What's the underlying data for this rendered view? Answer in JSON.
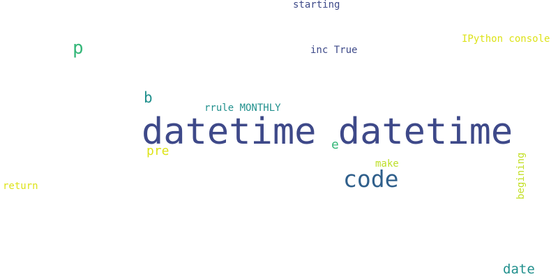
{
  "words": [
    {
      "id": "datetime-datetime",
      "text": "datetime datetime",
      "color": "#3e4989"
    },
    {
      "id": "code",
      "text": "code",
      "color": "#2f5f8b"
    },
    {
      "id": "p",
      "text": "p",
      "color": "#35b779"
    },
    {
      "id": "b",
      "text": "b",
      "color": "#21908d"
    },
    {
      "id": "rrule-monthly",
      "text": "rrule MONTHLY",
      "color": "#21908d"
    },
    {
      "id": "inc-true",
      "text": "inc True",
      "color": "#3e4a89"
    },
    {
      "id": "starting",
      "text": "starting",
      "color": "#3e4a89"
    },
    {
      "id": "ipython-console",
      "text": "IPython console",
      "color": "#dde318"
    },
    {
      "id": "pre",
      "text": "pre",
      "color": "#dde318"
    },
    {
      "id": "e",
      "text": "e",
      "color": "#35b779"
    },
    {
      "id": "make",
      "text": "make",
      "color": "#bddf26"
    },
    {
      "id": "begining",
      "text": "begining",
      "color": "#c2df23"
    },
    {
      "id": "return",
      "text": "return",
      "color": "#dde318"
    },
    {
      "id": "date",
      "text": "date",
      "color": "#21908d"
    }
  ]
}
